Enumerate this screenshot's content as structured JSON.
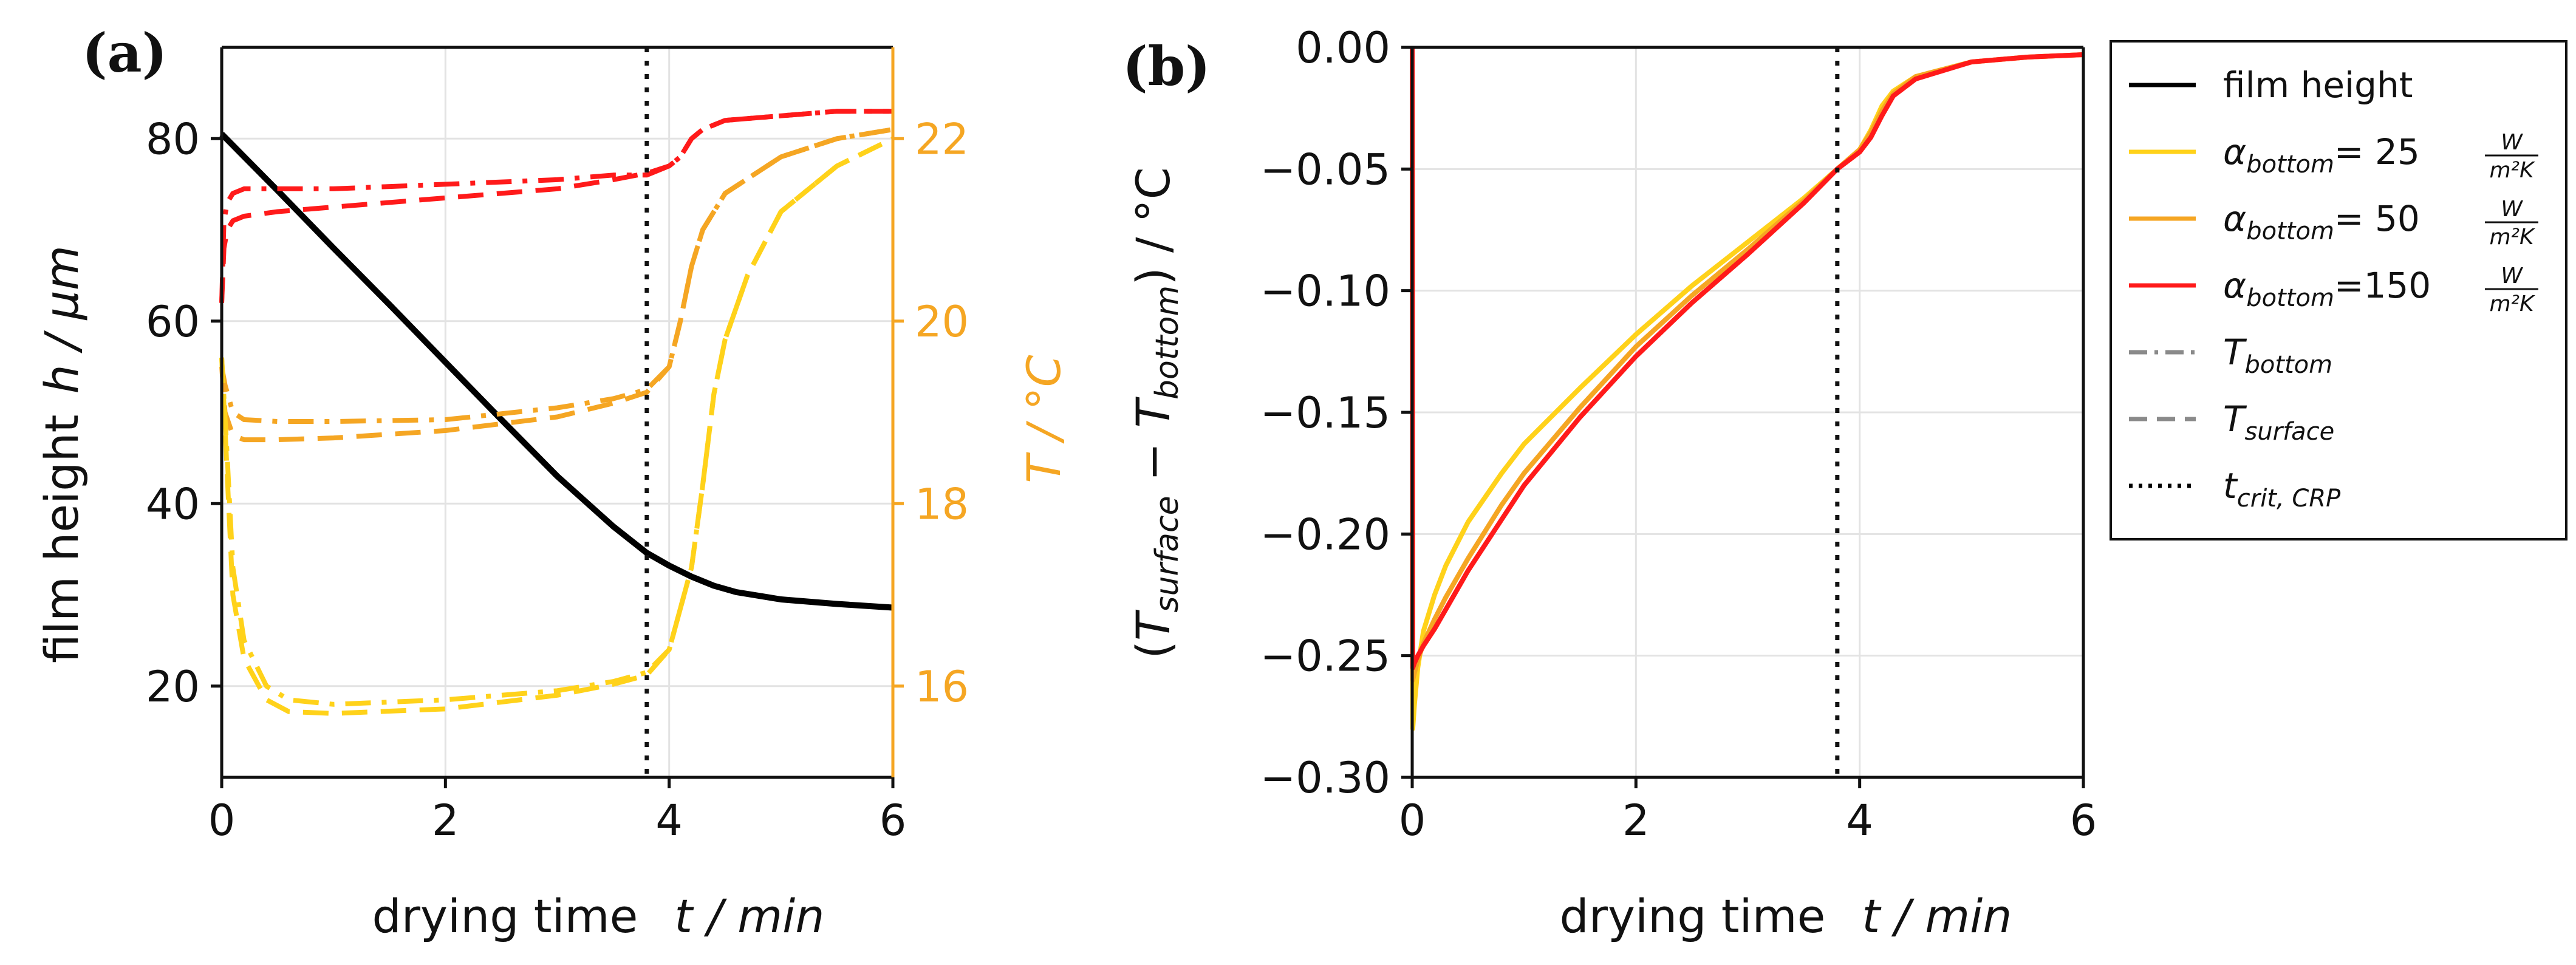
{
  "colors": {
    "film": "#000000",
    "alpha25": "#ffd21a",
    "alpha50": "#f5a623",
    "alpha150": "#ff1a1a",
    "axis_right": "#f5a623",
    "legend_style": "#8a8a8a",
    "grid": "#e3e3e3"
  },
  "chart_data": [
    {
      "panel": "(a)",
      "type": "line",
      "xlabel": {
        "main": "drying time",
        "var": "t / min"
      },
      "ylabel_left": {
        "main": "film height",
        "var": "h / µm"
      },
      "ylabel_right": {
        "var": "T / °C"
      },
      "xlim": [
        0,
        6
      ],
      "ylim_left": [
        10,
        90
      ],
      "ylim_right": [
        15,
        23
      ],
      "xticks": [
        0,
        2,
        4,
        6
      ],
      "yticks_left": [
        20,
        40,
        60,
        80
      ],
      "yticks_right": [
        16,
        18,
        20,
        22
      ],
      "t_crit": 3.8,
      "series": [
        {
          "name": "film height",
          "axis": "left",
          "color_key": "film",
          "style": "solid",
          "x": [
            0,
            0.5,
            1,
            1.5,
            2,
            2.5,
            3,
            3.5,
            3.8,
            4.0,
            4.2,
            4.4,
            4.6,
            5.0,
            5.5,
            6.0
          ],
          "y": [
            80.5,
            74.3,
            68.0,
            61.8,
            55.5,
            49.2,
            43.0,
            37.5,
            34.6,
            33.2,
            32.0,
            31.0,
            30.3,
            29.5,
            29.0,
            28.6
          ]
        },
        {
          "name": "T_bottom α=150",
          "axis": "right",
          "color_key": "alpha150",
          "style": "dashdot",
          "x": [
            0,
            0.02,
            0.05,
            0.1,
            0.2,
            0.5,
            1,
            2,
            3,
            3.5,
            3.8,
            4.0,
            4.1,
            4.2,
            4.3,
            4.5,
            5.0,
            5.5,
            6.0
          ],
          "y": [
            20.2,
            21.1,
            21.3,
            21.4,
            21.45,
            21.45,
            21.45,
            21.5,
            21.55,
            21.6,
            21.6,
            21.7,
            21.8,
            22.0,
            22.1,
            22.2,
            22.25,
            22.3,
            22.3
          ]
        },
        {
          "name": "T_surface α=150",
          "axis": "right",
          "color_key": "alpha150",
          "style": "dashed",
          "x": [
            0,
            0.02,
            0.05,
            0.1,
            0.2,
            0.5,
            1,
            2,
            3,
            3.5,
            3.8,
            4.0,
            4.1,
            4.2,
            4.3,
            4.5,
            5.0,
            5.5,
            6.0
          ],
          "y": [
            20.2,
            20.8,
            21.0,
            21.1,
            21.15,
            21.2,
            21.25,
            21.35,
            21.45,
            21.55,
            21.62,
            21.7,
            21.8,
            22.0,
            22.1,
            22.2,
            22.25,
            22.3,
            22.3
          ]
        },
        {
          "name": "T_bottom α=50",
          "axis": "right",
          "color_key": "alpha50",
          "style": "dashdot",
          "x": [
            0,
            0.03,
            0.1,
            0.2,
            0.5,
            1,
            2,
            3,
            3.5,
            3.8,
            4.0,
            4.1,
            4.2,
            4.3,
            4.5,
            5.0,
            5.5,
            6.0
          ],
          "y": [
            19.5,
            19.3,
            19.0,
            18.92,
            18.9,
            18.9,
            18.92,
            19.05,
            19.15,
            19.25,
            19.5,
            20.0,
            20.6,
            21.0,
            21.4,
            21.8,
            22.0,
            22.1
          ]
        },
        {
          "name": "T_surface α=50",
          "axis": "right",
          "color_key": "alpha50",
          "style": "dashed",
          "x": [
            0,
            0.03,
            0.1,
            0.2,
            0.5,
            1,
            2,
            3,
            3.5,
            3.8,
            4.0,
            4.1,
            4.2,
            4.3,
            4.5,
            5.0,
            5.5,
            6.0
          ],
          "y": [
            19.5,
            19.0,
            18.75,
            18.7,
            18.7,
            18.72,
            18.8,
            18.95,
            19.1,
            19.22,
            19.5,
            20.0,
            20.6,
            21.0,
            21.4,
            21.8,
            22.0,
            22.1
          ]
        },
        {
          "name": "T_bottom α=25",
          "axis": "right",
          "color_key": "alpha25",
          "style": "dashdot",
          "x": [
            0,
            0.05,
            0.1,
            0.2,
            0.4,
            0.6,
            1,
            2,
            3,
            3.5,
            3.8,
            4.0,
            4.2,
            4.3,
            4.4,
            4.5,
            4.7,
            5.0,
            5.5,
            6.0
          ],
          "y": [
            19.6,
            18.5,
            17.3,
            16.5,
            16.0,
            15.85,
            15.8,
            15.85,
            15.95,
            16.05,
            16.15,
            16.4,
            17.3,
            18.2,
            19.2,
            19.8,
            20.5,
            21.2,
            21.7,
            22.0
          ]
        },
        {
          "name": "T_surface α=25",
          "axis": "right",
          "color_key": "alpha25",
          "style": "dashed",
          "x": [
            0,
            0.05,
            0.1,
            0.2,
            0.4,
            0.6,
            1,
            2,
            3,
            3.5,
            3.8,
            4.0,
            4.2,
            4.3,
            4.4,
            4.5,
            4.7,
            5.0,
            5.5,
            6.0
          ],
          "y": [
            19.6,
            18.3,
            17.0,
            16.3,
            15.85,
            15.72,
            15.7,
            15.75,
            15.9,
            16.02,
            16.12,
            16.4,
            17.3,
            18.2,
            19.2,
            19.8,
            20.5,
            21.2,
            21.7,
            22.0
          ]
        }
      ]
    },
    {
      "panel": "(b)",
      "type": "line",
      "xlabel": {
        "main": "drying time",
        "var": "t / min"
      },
      "ylabel": "(T_surface − T_bottom) / °C",
      "xlim": [
        0,
        6
      ],
      "ylim": [
        -0.3,
        0.0
      ],
      "xticks": [
        0,
        2,
        4,
        6
      ],
      "yticks": [
        "0.00",
        "−0.05",
        "−0.10",
        "−0.15",
        "−0.20",
        "−0.25",
        "−0.30"
      ],
      "yticks_values": [
        0.0,
        -0.05,
        -0.1,
        -0.15,
        -0.2,
        -0.25,
        -0.3
      ],
      "t_crit": 3.8,
      "series": [
        {
          "name": "α=25",
          "color_key": "alpha25",
          "style": "solid",
          "x": [
            0,
            0.005,
            0.02,
            0.05,
            0.1,
            0.2,
            0.3,
            0.5,
            0.8,
            1.0,
            1.5,
            2.0,
            2.5,
            3.0,
            3.5,
            3.8,
            4.0,
            4.1,
            4.2,
            4.3,
            4.5,
            5.0,
            5.5,
            6.0
          ],
          "y": [
            0.0,
            -0.28,
            -0.27,
            -0.255,
            -0.24,
            -0.225,
            -0.213,
            -0.195,
            -0.175,
            -0.163,
            -0.14,
            -0.118,
            -0.098,
            -0.08,
            -0.062,
            -0.05,
            -0.042,
            -0.034,
            -0.024,
            -0.018,
            -0.012,
            -0.006,
            -0.004,
            -0.003
          ]
        },
        {
          "name": "α=50",
          "color_key": "alpha50",
          "style": "solid",
          "x": [
            0,
            0.005,
            0.02,
            0.05,
            0.1,
            0.2,
            0.3,
            0.5,
            0.8,
            1.0,
            1.5,
            2.0,
            2.5,
            3.0,
            3.5,
            3.8,
            4.0,
            4.1,
            4.2,
            4.3,
            4.5,
            5.0,
            5.5,
            6.0
          ],
          "y": [
            0.0,
            -0.26,
            -0.257,
            -0.252,
            -0.245,
            -0.235,
            -0.226,
            -0.21,
            -0.188,
            -0.175,
            -0.148,
            -0.123,
            -0.102,
            -0.083,
            -0.063,
            -0.05,
            -0.042,
            -0.035,
            -0.026,
            -0.019,
            -0.012,
            -0.006,
            -0.004,
            -0.003
          ]
        },
        {
          "name": "α=150",
          "color_key": "alpha150",
          "style": "solid",
          "x": [
            0,
            0.005,
            0.02,
            0.05,
            0.1,
            0.2,
            0.3,
            0.5,
            0.8,
            1.0,
            1.5,
            2.0,
            2.5,
            3.0,
            3.5,
            3.8,
            4.0,
            4.1,
            4.2,
            4.3,
            4.5,
            5.0,
            5.5,
            6.0
          ],
          "y": [
            0.0,
            -0.255,
            -0.253,
            -0.25,
            -0.246,
            -0.239,
            -0.231,
            -0.215,
            -0.194,
            -0.18,
            -0.152,
            -0.127,
            -0.105,
            -0.085,
            -0.064,
            -0.05,
            -0.043,
            -0.037,
            -0.028,
            -0.02,
            -0.013,
            -0.006,
            -0.004,
            -0.003
          ]
        }
      ]
    }
  ],
  "legend": {
    "items": [
      {
        "label": "film height",
        "color_key": "film",
        "style": "solid"
      },
      {
        "label_prefix": "α",
        "label_sub": "bottom",
        "label_value": "=  25",
        "unit_num": "W",
        "unit_den": "m²K",
        "color_key": "alpha25",
        "style": "solid"
      },
      {
        "label_prefix": "α",
        "label_sub": "bottom",
        "label_value": "=  50",
        "unit_num": "W",
        "unit_den": "m²K",
        "color_key": "alpha50",
        "style": "solid"
      },
      {
        "label_prefix": "α",
        "label_sub": "bottom",
        "label_value": "=150",
        "unit_num": "W",
        "unit_den": "m²K",
        "color_key": "alpha150",
        "style": "solid"
      },
      {
        "label_prefix": "T",
        "label_sub": "bottom",
        "color_key": "legend_style",
        "style": "dashdot"
      },
      {
        "label_prefix": "T",
        "label_sub": "surface",
        "color_key": "legend_style",
        "style": "dashed"
      },
      {
        "label_prefix": "t",
        "label_sub": "crit, CRP",
        "color_key": "film",
        "style": "dotted"
      }
    ]
  }
}
